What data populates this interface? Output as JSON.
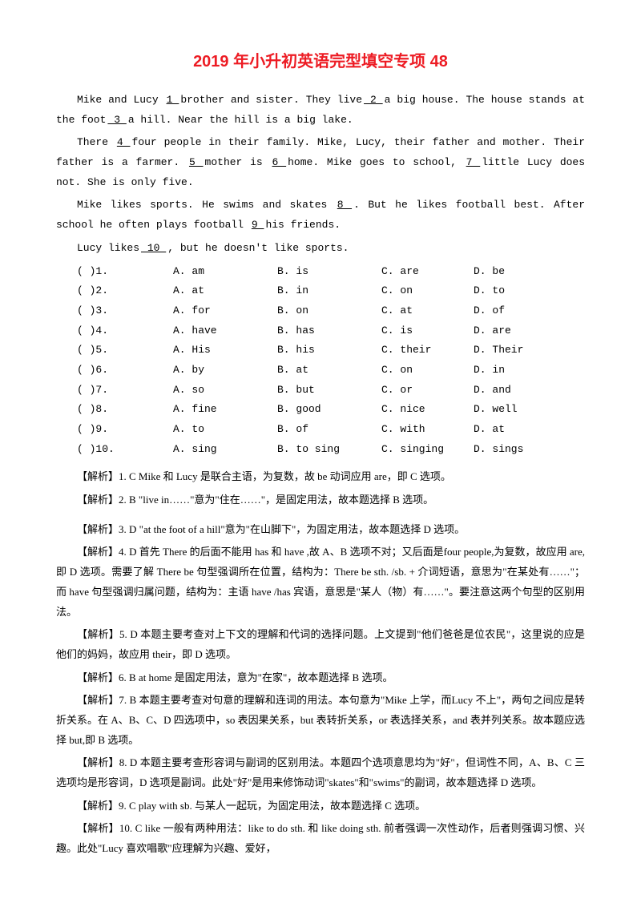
{
  "title": "2019 年小升初英语完型填空专项 48",
  "passage": [
    "Mike and Lucy <u>  1  </u> brother and sister. They live<u>  2  </u> a big house. The house stands at the foot<u>  3  </u> a hill. Near the hill is a big lake.",
    "There <u>  4  </u> four people in their family. Mike, Lucy, their father and mother. Their father is a farmer. <u>  5  </u> mother is <u>  6  </u> home. Mike goes to school, <u>  7  </u> little Lucy does not. She is only five.",
    "Mike likes sports. He swims and skates <u>  8  </u> . But he likes football best. After school he often plays football <u>  9  </u> his friends.",
    "Lucy likes<u>  10  </u>, but he doesn't like sports."
  ],
  "options": [
    {
      "n": "(    )1.",
      "a": "A. am",
      "b": "B. is",
      "c": "C. are",
      "d": "D. be"
    },
    {
      "n": "(    )2.",
      "a": "A. at",
      "b": "B. in",
      "c": "C. on",
      "d": "D. to"
    },
    {
      "n": "(    )3.",
      "a": "A. for",
      "b": "B. on",
      "c": "C. at",
      "d": "D. of"
    },
    {
      "n": "(    )4.",
      "a": "A. have",
      "b": "B. has",
      "c": "C. is",
      "d": "D. are"
    },
    {
      "n": "(    )5.",
      "a": "A. His",
      "b": "B. his",
      "c": "C. their",
      "d": "D. Their"
    },
    {
      "n": "(    )6.",
      "a": "A. by",
      "b": "B. at",
      "c": "C. on",
      "d": "D. in"
    },
    {
      "n": "(    )7.",
      "a": "A. so",
      "b": "B. but",
      "c": "C. or",
      "d": "D. and"
    },
    {
      "n": "(    )8.",
      "a": "A. fine",
      "b": "B. good",
      "c": "C. nice",
      "d": "D. well"
    },
    {
      "n": "(    )9.",
      "a": "A. to",
      "b": "B. of",
      "c": "C. with",
      "d": "D. at"
    },
    {
      "n": "(    )10.",
      "a": "A. sing",
      "b": "B. to sing",
      "c": "C. singing",
      "d": "D. sings"
    }
  ],
  "analysis": [
    {
      "text": "【解析】1. C  Mike 和 Lucy 是联合主语，为复数，故 be 动词应用 are，即 C 选项。",
      "gap": false
    },
    {
      "text": "【解析】2. B  \"live in……\"意为\"住在……\"，是固定用法，故本题选择 B 选项。",
      "gap": true
    },
    {
      "text": "【解析】3. D  \"at the foot of a hill\"意为\"在山脚下\"，为固定用法，故本题选择 D 选项。",
      "gap": false
    },
    {
      "text": "【解析】4. D  首先 There 的后面不能用 has 和 have ,故 A、B 选项不对；又后面是four people,为复数，故应用 are,即 D 选项。需要了解 There  be 句型强调所在位置，结构为：There be sth. /sb. + 介词短语，意思为\"在某处有……\"；而 have 句型强调归属问题，结构为：主语 have  /has 宾语，意思是\"某人（物）有……\"。要注意这两个句型的区别用法。",
      "gap": false
    },
    {
      "text": "【解析】5. D  本题主要考查对上下文的理解和代词的选择问题。上文提到\"他们爸爸是位农民\"，这里说的应是他们的妈妈，故应用 their，即 D 选项。",
      "gap": false
    },
    {
      "text": "【解析】6. B  at home 是固定用法，意为\"在家\"，故本题选择 B 选项。",
      "gap": false
    },
    {
      "text": "【解析】7. B  本题主要考查对句意的理解和连词的用法。本句意为\"Mike 上学，而Lucy 不上\"，两句之间应是转折关系。在 A、B、C、D 四选项中，so 表因果关系，but 表转折关系，or 表选择关系，and 表并列关系。故本题应选择 but,即 B 选项。",
      "gap": false
    },
    {
      "text": "【解析】8. D  本题主要考查形容词与副词的区别用法。本题四个选项意思均为\"好\"，但词性不同，A、B、C 三选项均是形容词，D 选项是副词。此处\"好\"是用来修饰动词\"skates\"和\"swims\"的副词，故本题选择 D 选项。",
      "gap": false
    },
    {
      "text": "【解析】9. C  play with sb. 与某人一起玩，为固定用法，故本题选择 C 选项。",
      "gap": false
    },
    {
      "text": "【解析】10. C  like 一般有两种用法：like to do sth. 和 like doing sth. 前者强调一次性动作，后者则强调习惯、兴趣。此处\"Lucy 喜欢唱歌\"应理解为兴趣、爱好，",
      "gap": false
    }
  ]
}
